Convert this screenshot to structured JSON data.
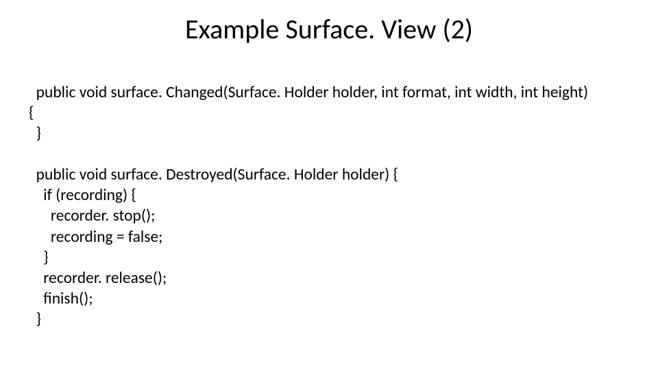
{
  "slide": {
    "title": "Example Surface. View (2)",
    "title_fontsize": 40,
    "body_fontsize": 23.5,
    "background_color": "#ffffff",
    "text_color": "#000000",
    "code_lines": [
      "  public void surface. Changed(Surface. Holder holder, int format, int width, int height)",
      "{",
      "  }",
      "",
      "  public void surface. Destroyed(Surface. Holder holder) {",
      "    if (recording) {",
      "      recorder. stop();",
      "      recording = false;",
      "    }",
      "    recorder. release();",
      "    finish();",
      "  }"
    ]
  }
}
